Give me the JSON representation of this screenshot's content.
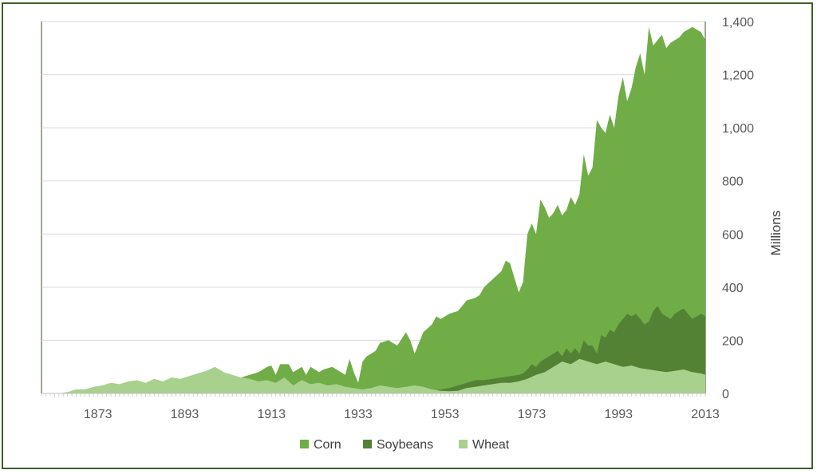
{
  "chart_data": {
    "type": "area",
    "stacked": false,
    "title": "",
    "xlabel": "",
    "ylabel": "Millions",
    "x_range": [
      1860,
      2013
    ],
    "ylim": [
      0,
      1400
    ],
    "y_axis_side": "right",
    "y_ticks": [
      0,
      200,
      400,
      600,
      800,
      1000,
      1200,
      1400
    ],
    "y_tick_labels": [
      "0",
      "200",
      "400",
      "600",
      "800",
      "1,000",
      "1,200",
      "1,400"
    ],
    "x_ticks": [
      1873,
      1893,
      1913,
      1933,
      1953,
      1973,
      1993,
      2013
    ],
    "x_tick_labels": [
      "1873",
      "1893",
      "1913",
      "1933",
      "1953",
      "1973",
      "1993",
      "2013"
    ],
    "grid": "horizontal",
    "legend_position": "bottom",
    "legend": [
      "Corn",
      "Soybeans",
      "Wheat"
    ],
    "series": [
      {
        "name": "Corn",
        "color": "#70ad47",
        "x": [
          1906,
          1908,
          1910,
          1912,
          1913,
          1914,
          1915,
          1917,
          1918,
          1920,
          1921,
          1922,
          1924,
          1925,
          1927,
          1928,
          1930,
          1931,
          1932,
          1933,
          1934,
          1935,
          1936,
          1937,
          1938,
          1940,
          1942,
          1944,
          1945,
          1946,
          1947,
          1948,
          1950,
          1951,
          1952,
          1954,
          1956,
          1958,
          1960,
          1961,
          1962,
          1964,
          1966,
          1967,
          1968,
          1970,
          1971,
          1972,
          1973,
          1974,
          1975,
          1976,
          1977,
          1978,
          1979,
          1980,
          1981,
          1982,
          1983,
          1984,
          1985,
          1986,
          1987,
          1988,
          1989,
          1990,
          1991,
          1992,
          1993,
          1994,
          1995,
          1996,
          1997,
          1998,
          1999,
          2000,
          2001,
          2002,
          2003,
          2004,
          2005,
          2006,
          2007,
          2008,
          2009,
          2010,
          2011,
          2012,
          2013
        ],
        "y": [
          60,
          70,
          80,
          100,
          105,
          70,
          110,
          110,
          80,
          100,
          70,
          100,
          80,
          90,
          100,
          90,
          70,
          130,
          80,
          40,
          120,
          140,
          150,
          160,
          190,
          200,
          180,
          230,
          200,
          150,
          190,
          230,
          260,
          290,
          280,
          300,
          310,
          350,
          360,
          370,
          400,
          430,
          460,
          500,
          490,
          380,
          420,
          600,
          640,
          600,
          730,
          700,
          660,
          680,
          710,
          670,
          690,
          740,
          710,
          750,
          900,
          820,
          850,
          1030,
          1000,
          980,
          1050,
          1000,
          1120,
          1190,
          1100,
          1150,
          1230,
          1280,
          1200,
          1380,
          1310,
          1330,
          1350,
          1300,
          1320,
          1330,
          1340,
          1360,
          1370,
          1380,
          1370,
          1360,
          1330
        ]
      },
      {
        "name": "Soybeans",
        "color": "#548235",
        "x": [
          1950,
          1952,
          1954,
          1956,
          1958,
          1960,
          1962,
          1964,
          1966,
          1968,
          1970,
          1971,
          1972,
          1973,
          1974,
          1975,
          1976,
          1977,
          1978,
          1979,
          1980,
          1981,
          1982,
          1983,
          1984,
          1985,
          1986,
          1987,
          1988,
          1989,
          1990,
          1991,
          1992,
          1993,
          1994,
          1995,
          1996,
          1997,
          1998,
          1999,
          2000,
          2001,
          2002,
          2003,
          2004,
          2005,
          2006,
          2007,
          2008,
          2009,
          2010,
          2011,
          2012,
          2013
        ],
        "y": [
          10,
          15,
          20,
          30,
          40,
          50,
          50,
          55,
          60,
          65,
          70,
          75,
          90,
          110,
          100,
          120,
          130,
          140,
          150,
          160,
          140,
          170,
          150,
          170,
          150,
          200,
          180,
          180,
          150,
          220,
          210,
          240,
          230,
          260,
          280,
          300,
          290,
          300,
          280,
          260,
          270,
          310,
          330,
          300,
          290,
          280,
          300,
          310,
          320,
          300,
          280,
          290,
          300,
          290
        ]
      },
      {
        "name": "Wheat",
        "color": "#a9d18e",
        "x": [
          1860,
          1862,
          1864,
          1866,
          1868,
          1870,
          1872,
          1874,
          1876,
          1878,
          1880,
          1882,
          1884,
          1886,
          1888,
          1890,
          1892,
          1894,
          1896,
          1898,
          1900,
          1902,
          1904,
          1906,
          1908,
          1910,
          1912,
          1914,
          1916,
          1918,
          1920,
          1922,
          1924,
          1926,
          1928,
          1930,
          1932,
          1934,
          1936,
          1938,
          1940,
          1942,
          1944,
          1946,
          1948,
          1950,
          1952,
          1954,
          1956,
          1958,
          1960,
          1962,
          1964,
          1966,
          1968,
          1970,
          1972,
          1974,
          1976,
          1978,
          1980,
          1982,
          1984,
          1986,
          1988,
          1990,
          1992,
          1994,
          1996,
          1998,
          2000,
          2002,
          2004,
          2006,
          2008,
          2010,
          2012,
          2013
        ],
        "y": [
          0,
          0,
          0,
          5,
          15,
          15,
          25,
          30,
          40,
          35,
          45,
          50,
          40,
          55,
          45,
          60,
          55,
          65,
          75,
          85,
          100,
          80,
          70,
          60,
          55,
          45,
          50,
          40,
          60,
          30,
          50,
          35,
          40,
          30,
          35,
          25,
          20,
          15,
          20,
          30,
          25,
          20,
          25,
          30,
          25,
          15,
          10,
          8,
          10,
          20,
          25,
          30,
          35,
          40,
          40,
          45,
          55,
          70,
          80,
          100,
          120,
          110,
          130,
          120,
          110,
          120,
          110,
          100,
          105,
          95,
          90,
          85,
          80,
          85,
          90,
          80,
          75,
          70
        ]
      }
    ]
  }
}
